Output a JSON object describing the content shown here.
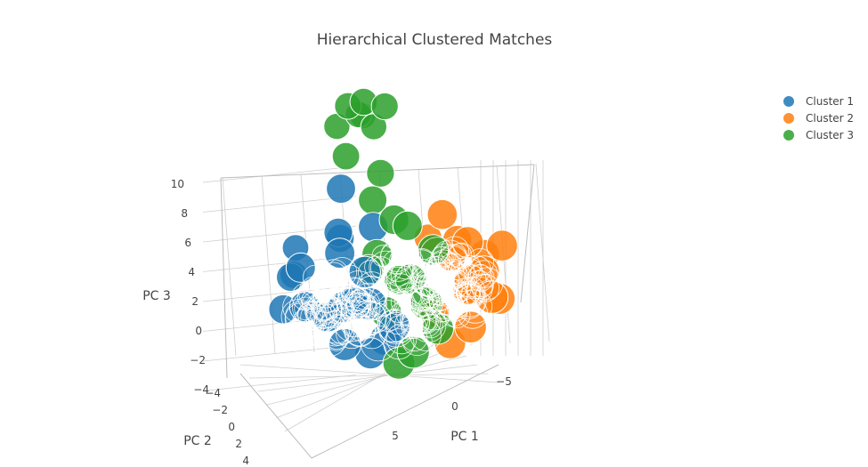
{
  "chart_data": {
    "type": "scatter3d",
    "title": "Hierarchical Clustered Matches",
    "xlabel": "PC 1",
    "ylabel": "PC 2",
    "zlabel": "PC 3",
    "x_ticks": [
      "5",
      "0",
      "−5"
    ],
    "y_ticks": [
      "−4",
      "−2",
      "0",
      "2",
      "4"
    ],
    "z_ticks": [
      "10",
      "8",
      "6",
      "4",
      "2",
      "0",
      "−2",
      "−4"
    ],
    "xlim": [
      -7,
      7
    ],
    "ylim": [
      -5,
      5
    ],
    "zlim": [
      -4,
      11
    ],
    "legend_position": "top-right",
    "grid": true,
    "series": [
      {
        "name": "Cluster 1",
        "color": "#1f77b4",
        "points": [
          [
            3.2,
            -3.5,
            1.5
          ],
          [
            2.4,
            -1.0,
            6.5
          ],
          [
            3.8,
            -2.8,
            0.2
          ],
          [
            4.6,
            -1.9,
            0.6
          ],
          [
            3.5,
            -0.5,
            -1.4
          ],
          [
            5.2,
            0.1,
            -0.2
          ],
          [
            2.0,
            0.8,
            -3.2
          ],
          [
            4.0,
            1.6,
            -2.0
          ],
          [
            1.6,
            -2.2,
            2.6
          ],
          [
            3.0,
            2.2,
            0.8
          ],
          [
            4.8,
            -0.8,
            1.8
          ],
          [
            2.6,
            1.2,
            2.3
          ],
          [
            1.0,
            0.5,
            -2.6
          ],
          [
            3.6,
            0.9,
            0.0
          ],
          [
            5.5,
            -1.2,
            -1.0
          ],
          [
            2.2,
            -1.5,
            3.4
          ],
          [
            1.4,
            1.8,
            -1.0
          ],
          [
            4.2,
            2.6,
            1.2
          ],
          [
            0.8,
            -0.7,
            4.0
          ],
          [
            3.1,
            -0.1,
            2.9
          ]
        ]
      },
      {
        "name": "Cluster 2",
        "color": "#ff7f0e",
        "points": [
          [
            -4.8,
            0.2,
            1.0
          ],
          [
            -4.2,
            -1.1,
            2.4
          ],
          [
            -5.1,
            1.0,
            -0.4
          ],
          [
            -3.6,
            0.6,
            3.2
          ],
          [
            -4.5,
            -2.0,
            0.8
          ],
          [
            -3.2,
            1.4,
            -1.8
          ],
          [
            -5.4,
            -0.6,
            1.6
          ],
          [
            -2.8,
            -0.3,
            4.6
          ],
          [
            -3.9,
            2.1,
            0.4
          ],
          [
            -4.9,
            -1.4,
            -1.0
          ],
          [
            -2.4,
            0.9,
            -3.0
          ],
          [
            -3.4,
            -2.3,
            2.0
          ],
          [
            -5.6,
            0.5,
            2.7
          ],
          [
            -2.9,
            1.8,
            1.4
          ],
          [
            -4.0,
            0.0,
            -0.2
          ],
          [
            -3.0,
            -1.2,
            -2.2
          ]
        ]
      },
      {
        "name": "Cluster 3",
        "color": "#2ca02c",
        "points": [
          [
            -0.4,
            -3.6,
            9.6
          ],
          [
            -1.6,
            -3.2,
            10.2
          ],
          [
            0.6,
            -3.9,
            8.8
          ],
          [
            -0.2,
            -2.9,
            10.8
          ],
          [
            -1.0,
            -4.1,
            9.2
          ],
          [
            0.4,
            -3.3,
            10.4
          ],
          [
            -1.4,
            -3.8,
            8.6
          ],
          [
            1.0,
            -2.6,
            7.6
          ],
          [
            -0.8,
            -2.4,
            6.4
          ],
          [
            0.2,
            -1.6,
            5.2
          ],
          [
            -1.2,
            -0.8,
            3.8
          ],
          [
            0.8,
            -0.4,
            2.4
          ],
          [
            -0.6,
            0.3,
            1.0
          ],
          [
            1.2,
            0.9,
            -0.6
          ],
          [
            -1.5,
            1.2,
            -1.8
          ],
          [
            0.3,
            1.8,
            -2.8
          ],
          [
            -0.9,
            -1.1,
            0.2
          ],
          [
            1.4,
            -0.2,
            1.6
          ],
          [
            -1.8,
            0.4,
            2.8
          ],
          [
            0.0,
            2.4,
            0.6
          ],
          [
            0.9,
            1.5,
            -3.6
          ],
          [
            -0.3,
            -0.6,
            4.4
          ]
        ]
      }
    ]
  }
}
